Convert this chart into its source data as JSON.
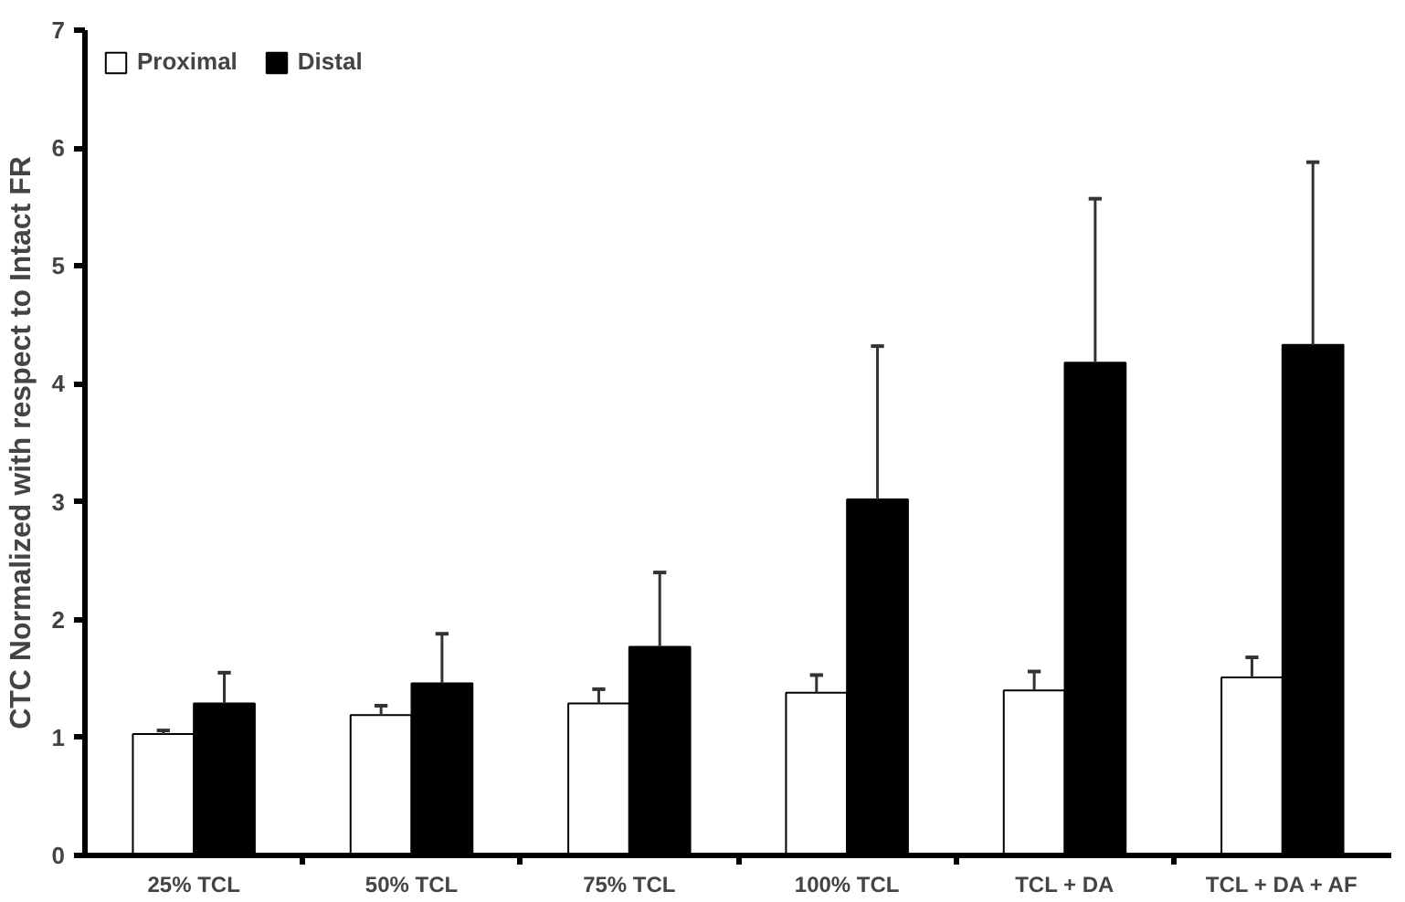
{
  "chart_data": {
    "type": "bar",
    "ylabel": "CTC Normalized with respect to Intact FR",
    "categories": [
      "25% TCL",
      "50% TCL",
      "75% TCL",
      "100% TCL",
      "TCL + DA",
      "TCL + DA + AF"
    ],
    "series": [
      {
        "name": "Proximal",
        "color": "#ffffff",
        "values": [
          1.03,
          1.19,
          1.29,
          1.38,
          1.4,
          1.51
        ],
        "errors": [
          [
            1.03,
            1.06
          ],
          [
            1.19,
            1.27
          ],
          [
            1.29,
            1.41
          ],
          [
            1.38,
            1.53
          ],
          [
            1.4,
            1.56
          ],
          [
            1.51,
            1.68
          ]
        ]
      },
      {
        "name": "Distal",
        "color": "#000000",
        "values": [
          1.29,
          1.46,
          1.77,
          3.02,
          4.18,
          4.33
        ],
        "errors": [
          [
            1.29,
            1.55
          ],
          [
            1.46,
            1.88
          ],
          [
            1.77,
            2.4
          ],
          [
            3.02,
            4.32
          ],
          [
            4.18,
            5.57
          ],
          [
            4.33,
            5.88
          ]
        ]
      }
    ],
    "ylim": [
      0,
      7
    ],
    "yticks": [
      0,
      1,
      2,
      3,
      4,
      5,
      6,
      7
    ],
    "grid": false,
    "legend": "top left"
  }
}
